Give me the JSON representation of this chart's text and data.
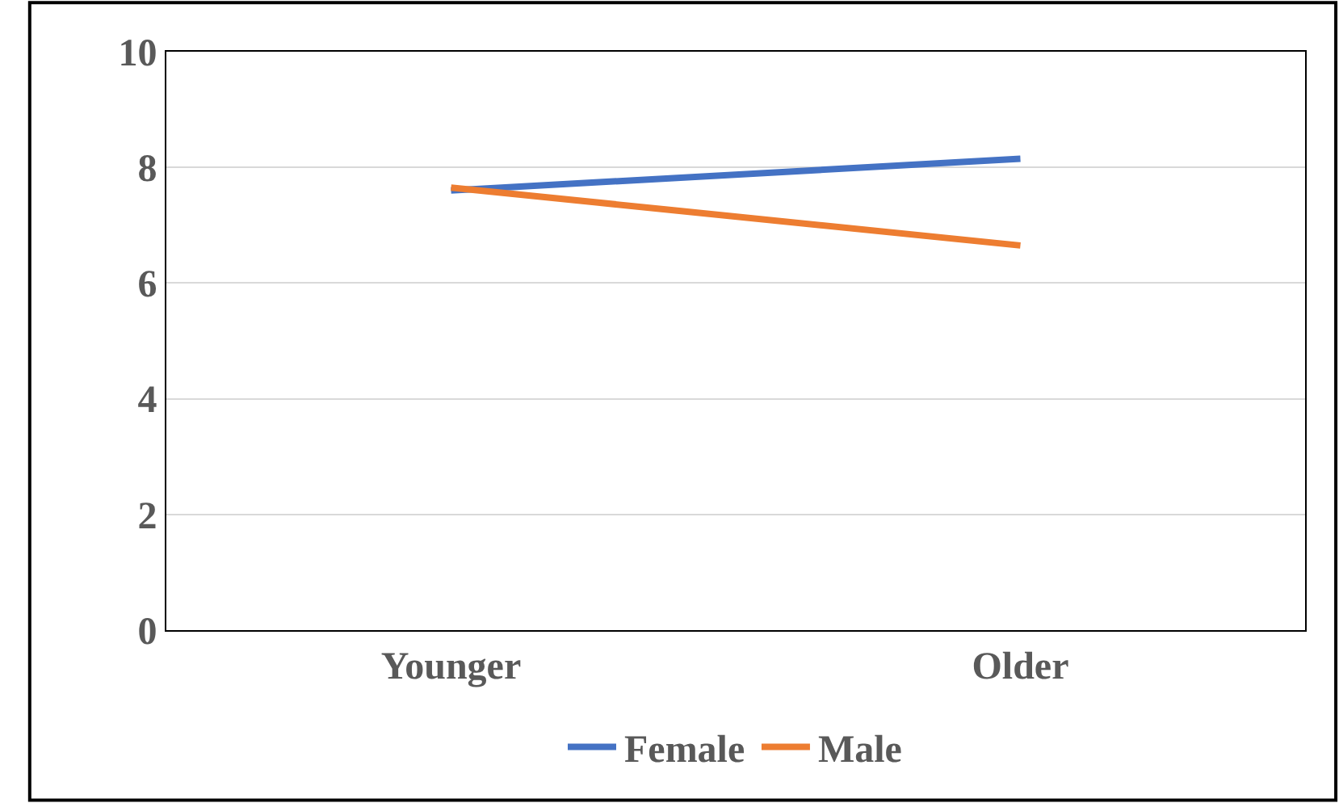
{
  "chart_data": {
    "type": "line",
    "categories": [
      "Younger",
      "Older"
    ],
    "series": [
      {
        "name": "Female",
        "color": "#4472c4",
        "values": [
          7.6,
          8.15
        ]
      },
      {
        "name": "Male",
        "color": "#ed7d31",
        "values": [
          7.65,
          6.65
        ]
      }
    ],
    "ylim": [
      0,
      10
    ],
    "yticks": [
      0,
      2,
      4,
      6,
      8,
      10
    ],
    "grid": "y",
    "legend": "bottom",
    "marker": "none",
    "line_style": "solid"
  }
}
